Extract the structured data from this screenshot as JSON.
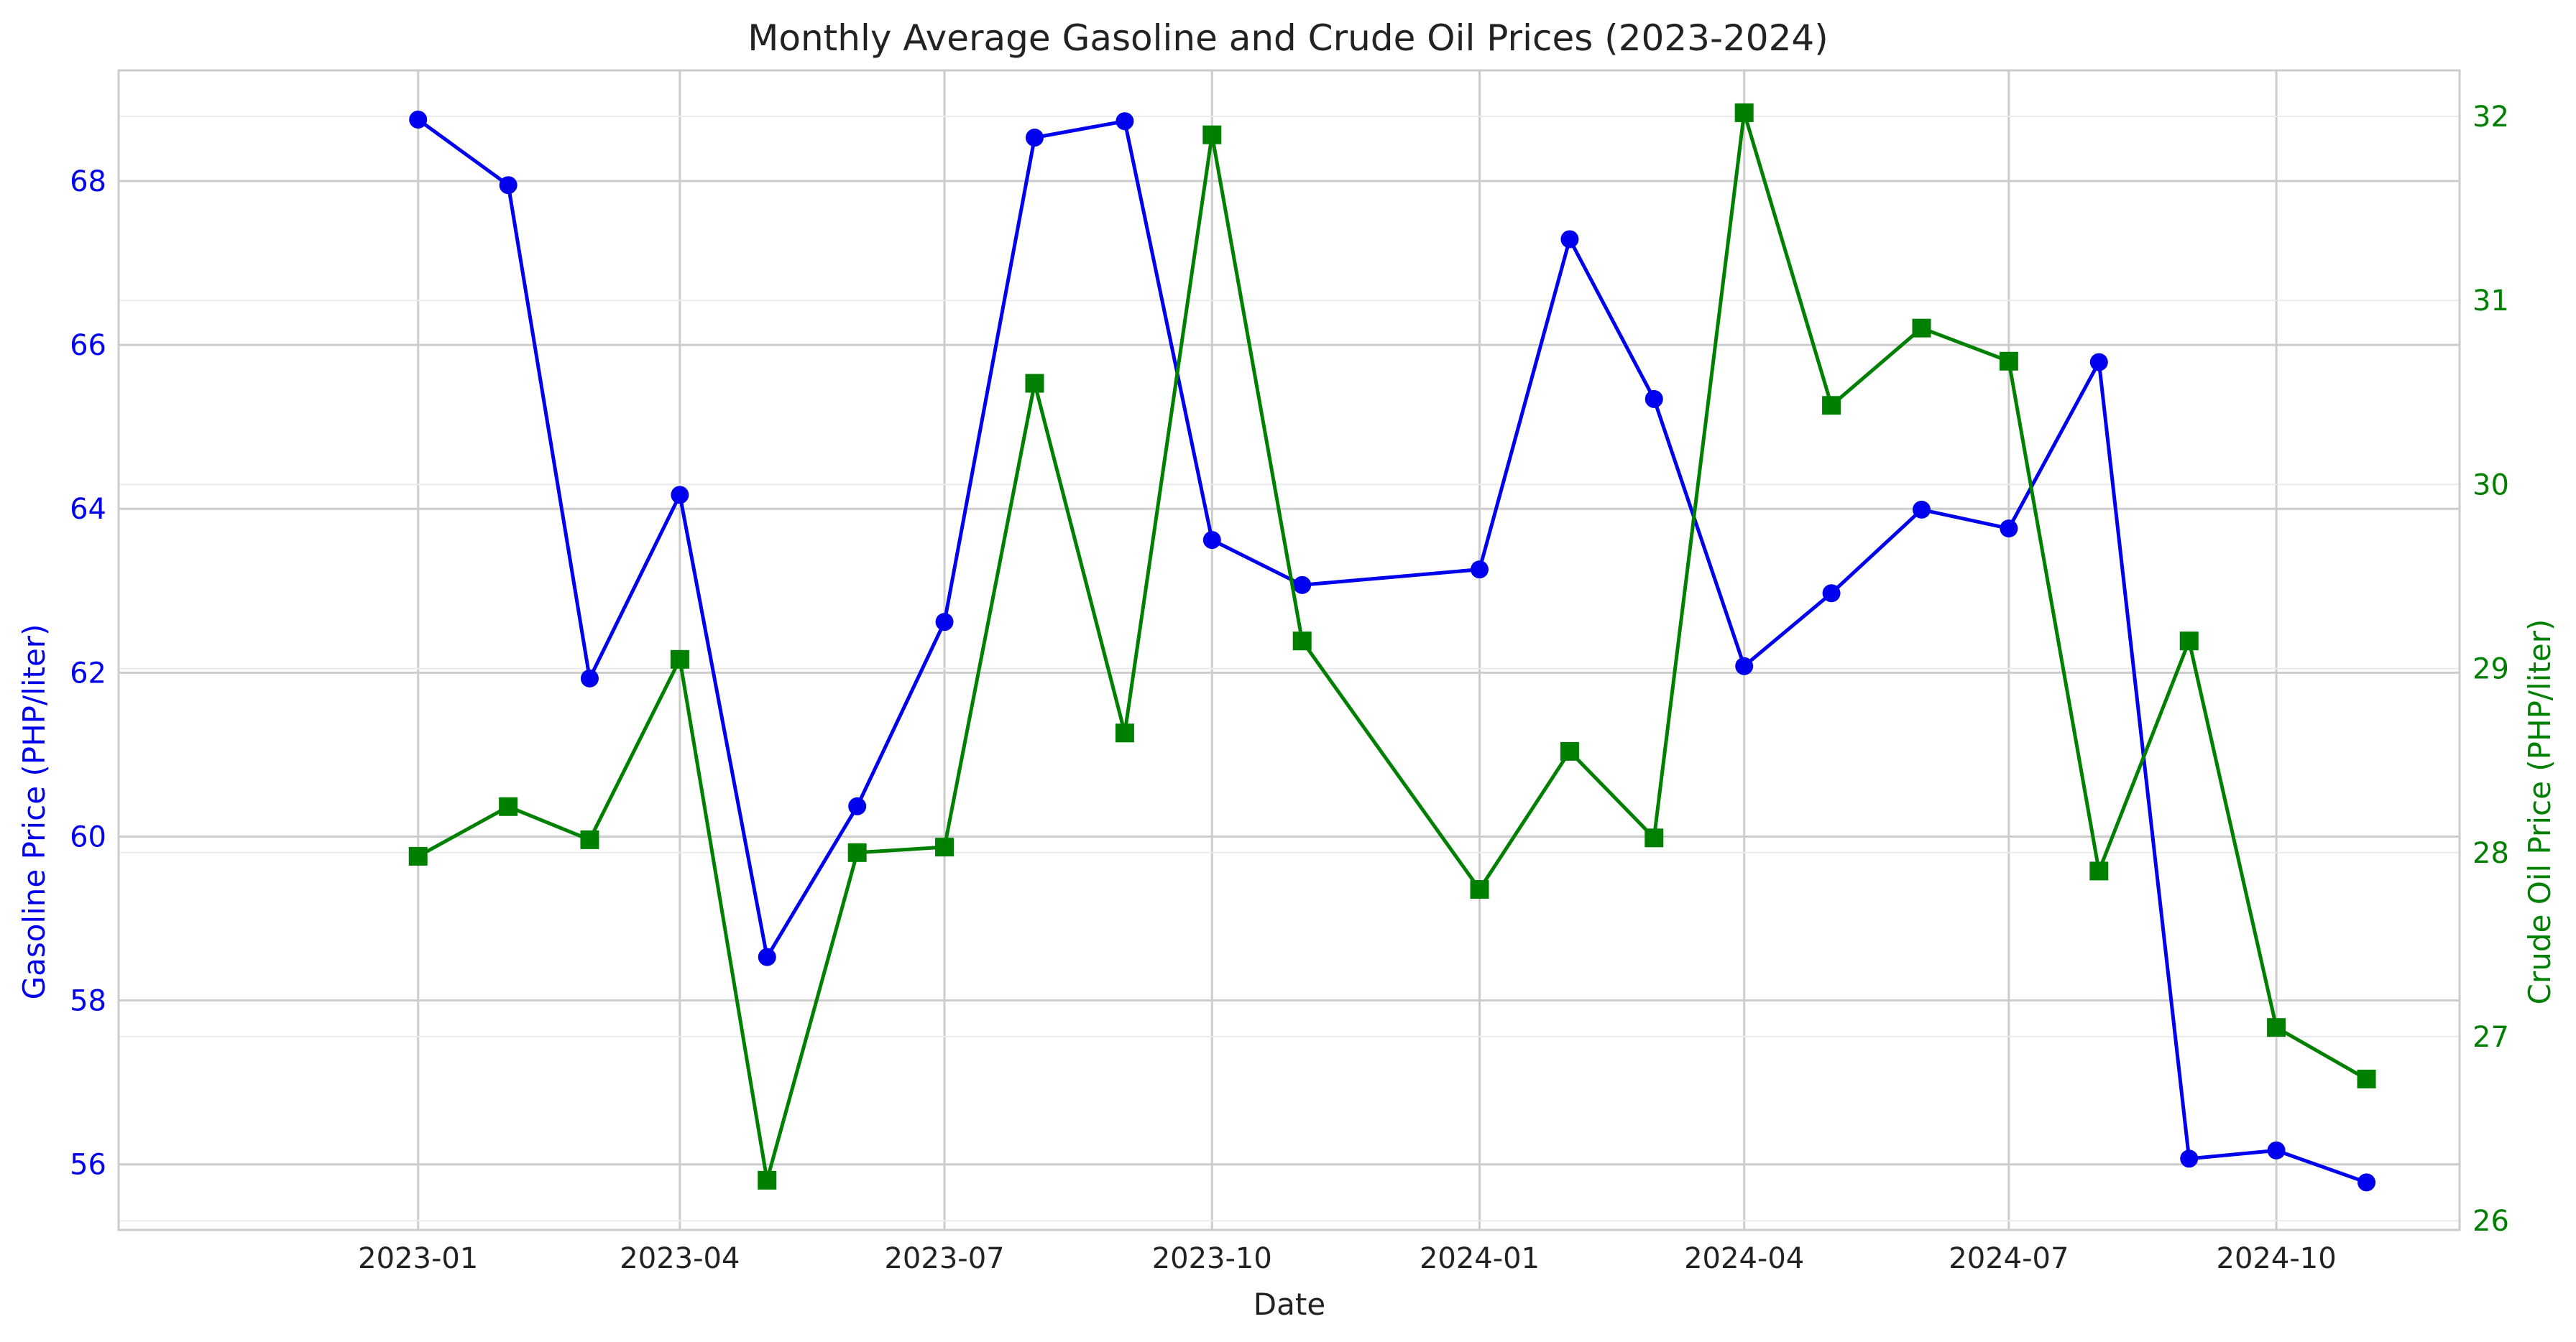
{
  "chart_data": {
    "type": "line",
    "title": "Monthly Average Gasoline and Crude Oil Prices (2023-2024)",
    "xlabel": "Date",
    "x_ticks": [
      "2023-01",
      "2023-04",
      "2023-07",
      "2023-10",
      "2024-01",
      "2024-04",
      "2024-07",
      "2024-10"
    ],
    "x": [
      "2023-01",
      "2023-02",
      "2023-03",
      "2023-04",
      "2023-05",
      "2023-06",
      "2023-07",
      "2023-08",
      "2023-09",
      "2023-10",
      "2023-11",
      "2024-01",
      "2024-02",
      "2024-03",
      "2024-04",
      "2024-05",
      "2024-06",
      "2024-07",
      "2024-08",
      "2024-09",
      "2024-10",
      "2024-11"
    ],
    "left_axis": {
      "label": "Gasoline Price (PHP/liter)",
      "color": "#0000ee",
      "ylim": [
        55.2,
        69.35
      ],
      "ticks": [
        "56",
        "58",
        "60",
        "62",
        "64",
        "66",
        "68"
      ]
    },
    "right_axis": {
      "label": "Crude Oil Price (PHP/liter)",
      "color": "#008000",
      "ylim": [
        25.95,
        32.25
      ],
      "ticks": [
        "26",
        "27",
        "28",
        "29",
        "30",
        "31",
        "32"
      ]
    },
    "series": [
      {
        "axis": "left",
        "marker": "circle",
        "color": "#0000ee",
        "values": [
          68.75,
          67.95,
          61.93,
          64.17,
          58.53,
          60.37,
          62.62,
          68.53,
          68.73,
          63.62,
          63.07,
          63.26,
          67.29,
          65.34,
          62.08,
          62.97,
          63.99,
          63.76,
          65.79,
          56.07,
          56.17,
          55.78
        ]
      },
      {
        "axis": "right",
        "marker": "square",
        "color": "#008000",
        "values": [
          27.98,
          28.25,
          28.07,
          29.05,
          26.22,
          28.0,
          28.03,
          30.55,
          28.65,
          31.9,
          29.15,
          27.8,
          28.55,
          28.08,
          32.02,
          30.43,
          30.85,
          30.67,
          27.9,
          29.15,
          27.05,
          26.77
        ]
      }
    ],
    "grid": true,
    "legend": "none"
  }
}
